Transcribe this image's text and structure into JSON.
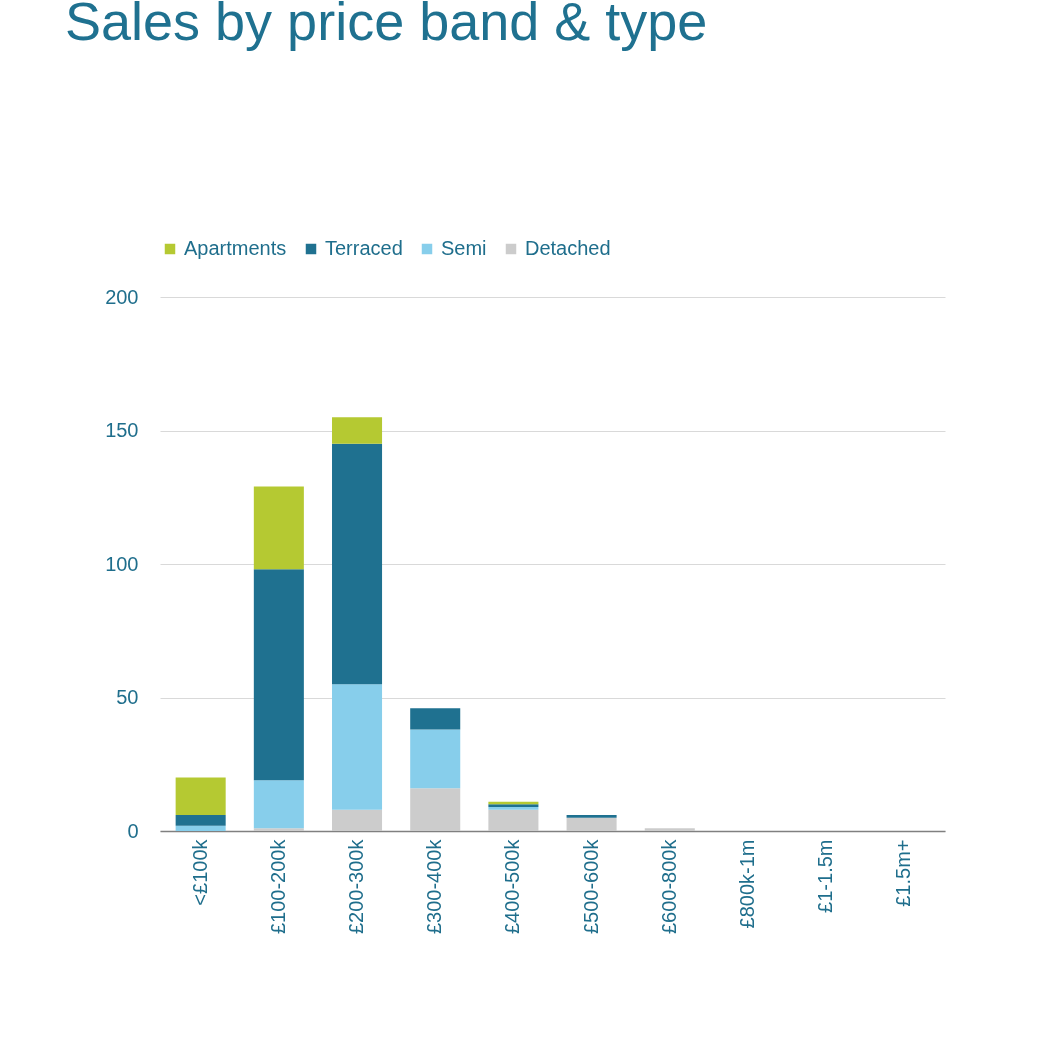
{
  "chart_data": {
    "type": "bar",
    "title": "Sales by price band & type",
    "stacked": true,
    "categories": [
      "<£100k",
      "£100-200k",
      "£200-300k",
      "£300-400k",
      "£400-500k",
      "£500-600k",
      "£600-800k",
      "£800k-1m",
      "£1-1.5m",
      "£1.5m+"
    ],
    "series": [
      {
        "name": "Detached",
        "color": "#cccccc",
        "values": [
          0,
          1,
          8,
          16,
          8,
          5,
          1,
          0,
          0,
          0
        ]
      },
      {
        "name": "Semi",
        "color": "#87ceeb",
        "values": [
          2,
          18,
          47,
          22,
          1,
          0,
          0,
          0,
          0,
          0
        ]
      },
      {
        "name": "Terraced",
        "color": "#1f7190",
        "values": [
          4,
          79,
          90,
          8,
          1,
          1,
          0,
          0,
          0,
          0
        ]
      },
      {
        "name": "Apartments",
        "color": "#b5c932",
        "values": [
          14,
          31,
          10,
          0,
          1,
          0,
          0,
          0,
          0,
          0
        ]
      }
    ],
    "ylim": [
      0,
      200
    ],
    "yticks": [
      0,
      50,
      100,
      150,
      200
    ],
    "grid": "y",
    "legend": "top"
  }
}
